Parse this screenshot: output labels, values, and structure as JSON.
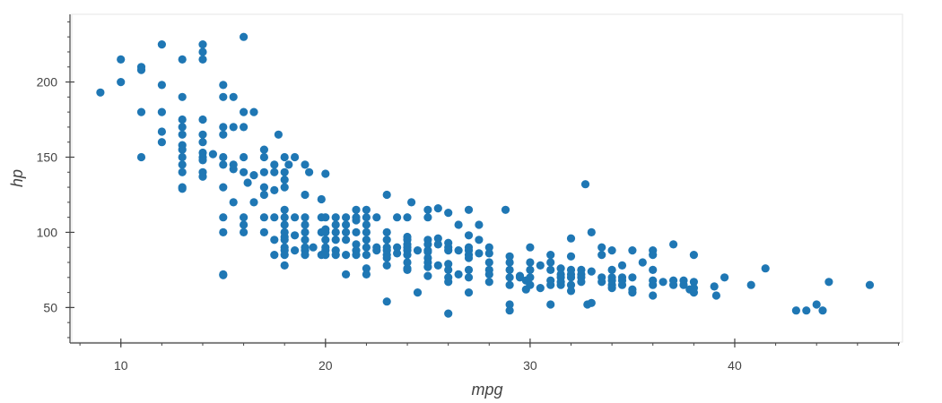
{
  "chart_data": {
    "type": "scatter",
    "title": "",
    "xlabel": "mpg",
    "ylabel": "hp",
    "xlim": [
      7.6,
      48.2
    ],
    "ylim": [
      27,
      245
    ],
    "x_ticks": [
      10,
      20,
      30,
      40
    ],
    "y_ticks": [
      50,
      100,
      150,
      200
    ],
    "x_minor_step": 2,
    "y_minor_step": 10,
    "grid": false,
    "marker_color": "#1f77b4",
    "axis_color": "#444444",
    "points": [
      [
        9,
        193
      ],
      [
        10,
        215
      ],
      [
        10,
        200
      ],
      [
        11,
        210
      ],
      [
        11,
        208
      ],
      [
        11,
        180
      ],
      [
        11,
        150
      ],
      [
        12,
        225
      ],
      [
        12,
        198
      ],
      [
        12,
        180
      ],
      [
        12,
        167
      ],
      [
        12,
        160
      ],
      [
        13,
        215
      ],
      [
        13,
        190
      ],
      [
        13,
        175
      ],
      [
        13,
        170
      ],
      [
        13,
        165
      ],
      [
        13,
        158
      ],
      [
        13,
        155
      ],
      [
        13,
        150
      ],
      [
        13,
        145
      ],
      [
        13,
        140
      ],
      [
        13,
        130
      ],
      [
        13,
        129
      ],
      [
        14,
        225
      ],
      [
        14,
        220
      ],
      [
        14,
        215
      ],
      [
        14,
        175
      ],
      [
        14,
        165
      ],
      [
        14,
        160
      ],
      [
        14,
        153
      ],
      [
        14,
        150
      ],
      [
        14,
        148
      ],
      [
        14,
        140
      ],
      [
        14,
        137
      ],
      [
        14.5,
        152
      ],
      [
        15,
        198
      ],
      [
        15,
        190
      ],
      [
        15,
        170
      ],
      [
        15,
        165
      ],
      [
        15,
        150
      ],
      [
        15,
        145
      ],
      [
        15,
        130
      ],
      [
        15,
        110
      ],
      [
        15,
        100
      ],
      [
        15,
        72
      ],
      [
        15,
        71.5
      ],
      [
        15.5,
        190
      ],
      [
        15.5,
        170
      ],
      [
        15.5,
        145
      ],
      [
        15.5,
        142
      ],
      [
        15.5,
        120
      ],
      [
        16,
        230
      ],
      [
        16,
        180
      ],
      [
        16,
        170
      ],
      [
        16,
        150
      ],
      [
        16,
        140
      ],
      [
        16,
        110
      ],
      [
        16,
        105
      ],
      [
        16,
        100
      ],
      [
        16.2,
        133
      ],
      [
        16.5,
        180
      ],
      [
        16.5,
        138
      ],
      [
        16.5,
        120
      ],
      [
        17,
        155
      ],
      [
        17,
        150
      ],
      [
        17,
        140
      ],
      [
        17,
        130
      ],
      [
        17,
        125
      ],
      [
        17,
        110
      ],
      [
        17,
        100
      ],
      [
        17.5,
        145
      ],
      [
        17.5,
        140
      ],
      [
        17.5,
        128
      ],
      [
        17.5,
        110
      ],
      [
        17.5,
        95
      ],
      [
        17.5,
        85
      ],
      [
        17.7,
        165
      ],
      [
        18,
        150
      ],
      [
        18,
        140
      ],
      [
        18,
        135
      ],
      [
        18,
        130
      ],
      [
        18,
        115
      ],
      [
        18,
        110
      ],
      [
        18,
        105
      ],
      [
        18,
        100
      ],
      [
        18,
        97
      ],
      [
        18,
        95
      ],
      [
        18,
        90
      ],
      [
        18,
        88
      ],
      [
        18,
        85
      ],
      [
        18,
        78
      ],
      [
        18.2,
        145
      ],
      [
        18.5,
        150
      ],
      [
        18.5,
        110
      ],
      [
        18.5,
        98
      ],
      [
        18.5,
        88
      ],
      [
        19,
        145
      ],
      [
        19,
        125
      ],
      [
        19,
        110
      ],
      [
        19,
        105
      ],
      [
        19,
        100
      ],
      [
        19,
        95
      ],
      [
        19,
        90
      ],
      [
        19,
        88
      ],
      [
        19,
        85
      ],
      [
        19.2,
        140
      ],
      [
        19.4,
        90
      ],
      [
        19.8,
        122
      ],
      [
        19.8,
        110
      ],
      [
        19.8,
        100
      ],
      [
        19.8,
        85
      ],
      [
        20,
        139
      ],
      [
        20,
        110
      ],
      [
        20,
        102
      ],
      [
        20,
        100
      ],
      [
        20,
        95
      ],
      [
        20,
        90
      ],
      [
        20,
        88
      ],
      [
        20,
        85
      ],
      [
        20.5,
        110
      ],
      [
        20.5,
        105
      ],
      [
        20.5,
        100
      ],
      [
        20.5,
        95
      ],
      [
        20.5,
        88
      ],
      [
        20.5,
        85
      ],
      [
        21,
        110
      ],
      [
        21,
        105
      ],
      [
        21,
        100
      ],
      [
        21,
        95
      ],
      [
        21,
        85
      ],
      [
        21,
        72
      ],
      [
        21.5,
        115
      ],
      [
        21.5,
        110
      ],
      [
        21.5,
        108
      ],
      [
        21.5,
        100
      ],
      [
        21.5,
        92
      ],
      [
        21.5,
        88
      ],
      [
        21.5,
        85
      ],
      [
        22,
        115
      ],
      [
        22,
        110
      ],
      [
        22,
        105
      ],
      [
        22,
        100
      ],
      [
        22,
        95
      ],
      [
        22,
        90
      ],
      [
        22,
        85
      ],
      [
        22,
        76
      ],
      [
        22,
        72
      ],
      [
        22.5,
        110
      ],
      [
        22.5,
        90
      ],
      [
        22.5,
        88
      ],
      [
        23,
        125
      ],
      [
        23,
        100
      ],
      [
        23,
        95
      ],
      [
        23,
        90
      ],
      [
        23,
        88
      ],
      [
        23,
        85
      ],
      [
        23,
        83
      ],
      [
        23,
        78
      ],
      [
        23,
        54
      ],
      [
        23.5,
        110
      ],
      [
        23.5,
        90
      ],
      [
        23.5,
        86
      ],
      [
        24,
        110
      ],
      [
        24,
        97
      ],
      [
        24,
        95
      ],
      [
        24,
        92
      ],
      [
        24,
        90
      ],
      [
        24,
        88
      ],
      [
        24,
        85
      ],
      [
        24,
        80
      ],
      [
        24,
        76
      ],
      [
        24,
        75
      ],
      [
        24.2,
        120
      ],
      [
        24.5,
        88
      ],
      [
        24.5,
        60
      ],
      [
        25,
        115
      ],
      [
        25,
        110
      ],
      [
        25,
        95
      ],
      [
        25,
        92
      ],
      [
        25,
        88
      ],
      [
        25,
        87
      ],
      [
        25,
        83
      ],
      [
        25,
        80
      ],
      [
        25,
        77
      ],
      [
        25,
        71
      ],
      [
        25.5,
        116
      ],
      [
        25.5,
        96
      ],
      [
        25.5,
        92
      ],
      [
        25.5,
        78
      ],
      [
        26,
        113
      ],
      [
        26,
        93
      ],
      [
        26,
        90
      ],
      [
        26,
        88
      ],
      [
        26,
        79
      ],
      [
        26,
        75
      ],
      [
        26,
        70
      ],
      [
        26,
        67
      ],
      [
        26,
        46
      ],
      [
        26.5,
        105
      ],
      [
        26.5,
        88
      ],
      [
        26.5,
        72
      ],
      [
        27,
        115
      ],
      [
        27,
        98
      ],
      [
        27,
        90
      ],
      [
        27,
        88
      ],
      [
        27,
        85
      ],
      [
        27,
        83
      ],
      [
        27,
        75
      ],
      [
        27,
        70
      ],
      [
        27,
        60
      ],
      [
        27.5,
        105
      ],
      [
        27.5,
        95
      ],
      [
        27.5,
        86
      ],
      [
        28,
        90
      ],
      [
        28,
        86
      ],
      [
        28,
        80
      ],
      [
        28,
        75
      ],
      [
        28,
        72
      ],
      [
        28,
        67
      ],
      [
        28.8,
        115
      ],
      [
        29,
        84
      ],
      [
        29,
        80
      ],
      [
        29,
        75
      ],
      [
        29,
        70
      ],
      [
        29,
        65
      ],
      [
        29,
        52
      ],
      [
        29,
        48
      ],
      [
        29.5,
        71
      ],
      [
        29.5,
        70
      ],
      [
        29.8,
        68
      ],
      [
        29.8,
        62
      ],
      [
        30,
        90
      ],
      [
        30,
        80
      ],
      [
        30,
        75
      ],
      [
        30,
        70
      ],
      [
        30,
        65
      ],
      [
        30.5,
        78
      ],
      [
        30.5,
        63
      ],
      [
        31,
        85
      ],
      [
        31,
        80
      ],
      [
        31,
        75
      ],
      [
        31,
        68
      ],
      [
        31,
        65
      ],
      [
        31,
        52
      ],
      [
        31.5,
        76
      ],
      [
        31.5,
        72
      ],
      [
        31.5,
        70
      ],
      [
        31.5,
        67
      ],
      [
        31.5,
        65
      ],
      [
        32,
        96
      ],
      [
        32,
        84
      ],
      [
        32,
        75
      ],
      [
        32,
        72
      ],
      [
        32,
        70
      ],
      [
        32,
        65
      ],
      [
        32,
        61
      ],
      [
        32.5,
        75
      ],
      [
        32.5,
        72
      ],
      [
        32.5,
        70
      ],
      [
        32.5,
        67
      ],
      [
        32.7,
        132
      ],
      [
        32.8,
        52
      ],
      [
        33,
        100
      ],
      [
        33,
        74
      ],
      [
        33,
        53
      ],
      [
        33.5,
        90
      ],
      [
        33.5,
        85
      ],
      [
        33.5,
        70
      ],
      [
        33.5,
        67
      ],
      [
        34,
        88
      ],
      [
        34,
        75
      ],
      [
        34,
        70
      ],
      [
        34,
        68
      ],
      [
        34,
        65
      ],
      [
        34,
        63
      ],
      [
        34.5,
        78
      ],
      [
        34.5,
        70
      ],
      [
        34.5,
        68
      ],
      [
        34.5,
        65
      ],
      [
        35,
        88
      ],
      [
        35,
        70
      ],
      [
        35,
        62
      ],
      [
        35,
        60
      ],
      [
        35.5,
        80
      ],
      [
        36,
        88
      ],
      [
        36,
        85
      ],
      [
        36,
        75
      ],
      [
        36,
        68
      ],
      [
        36,
        65
      ],
      [
        36,
        58
      ],
      [
        36.5,
        67
      ],
      [
        37,
        92
      ],
      [
        37,
        68
      ],
      [
        37,
        65
      ],
      [
        37.5,
        68
      ],
      [
        37.5,
        65
      ],
      [
        37.8,
        62
      ],
      [
        38,
        85
      ],
      [
        38,
        67
      ],
      [
        38,
        63
      ],
      [
        38,
        60
      ],
      [
        39,
        64
      ],
      [
        39.1,
        58
      ],
      [
        39.5,
        70
      ],
      [
        40.8,
        65
      ],
      [
        41.5,
        76
      ],
      [
        43,
        48
      ],
      [
        43.5,
        48
      ],
      [
        44,
        52
      ],
      [
        44.3,
        48
      ],
      [
        44.6,
        67
      ],
      [
        46.6,
        65
      ]
    ]
  }
}
